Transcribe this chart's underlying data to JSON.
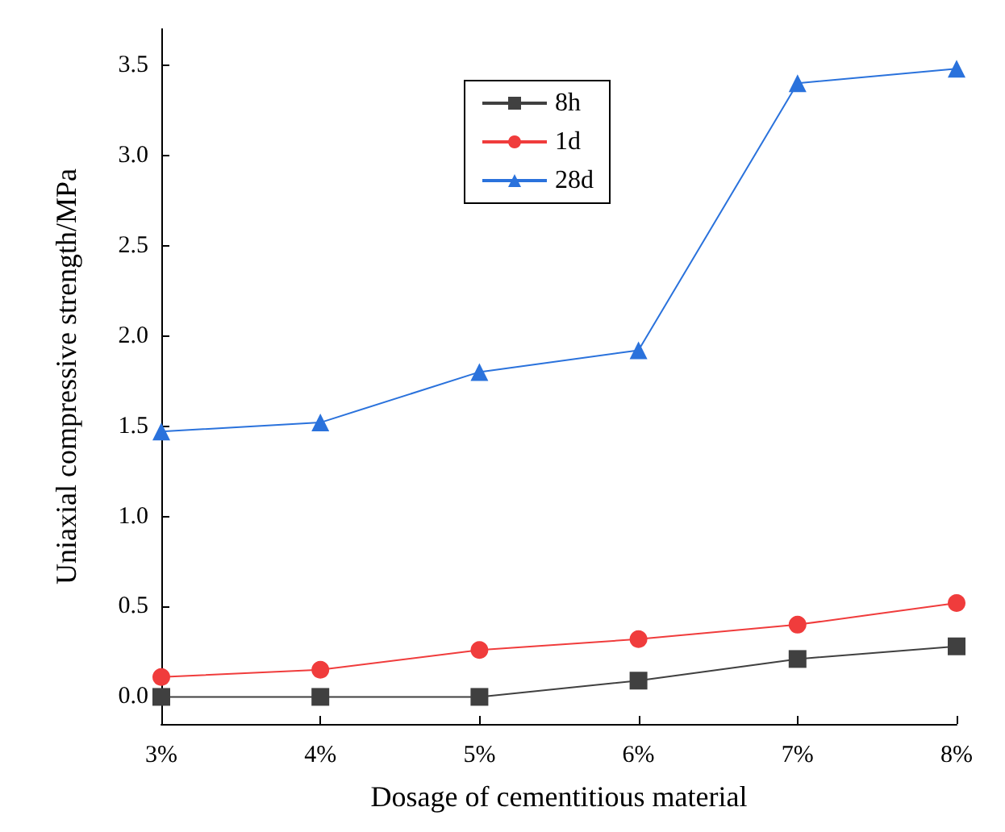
{
  "chart_data": {
    "type": "line",
    "xlabel": "Dosage of cementitious material",
    "ylabel": "Uniaxial compressive strength/MPa",
    "categories": [
      "3%",
      "4%",
      "5%",
      "6%",
      "7%",
      "8%"
    ],
    "series": [
      {
        "name": "8h",
        "color": "#404040",
        "marker": "square",
        "values": [
          0,
          0,
          0,
          0.09,
          0.21,
          0.28
        ]
      },
      {
        "name": "1d",
        "color": "#f03c3c",
        "marker": "circle",
        "values": [
          0.11,
          0.15,
          0.26,
          0.32,
          0.4,
          0.52
        ]
      },
      {
        "name": "28d",
        "color": "#2a72dc",
        "marker": "triangle",
        "values": [
          1.47,
          1.52,
          1.8,
          1.92,
          3.4,
          3.48
        ]
      }
    ],
    "ylim": [
      -0.15,
      3.7
    ],
    "yticks": [
      {
        "value": 0,
        "label": "0.0"
      },
      {
        "value": 0.5,
        "label": "0.5"
      },
      {
        "value": 1,
        "label": "1.0"
      },
      {
        "value": 1.5,
        "label": "1.5"
      },
      {
        "value": 2,
        "label": "2.0"
      },
      {
        "value": 2.5,
        "label": "2.5"
      },
      {
        "value": 3,
        "label": "3.0"
      },
      {
        "value": 3.5,
        "label": "3.5"
      }
    ],
    "grid": false,
    "legend": "top left"
  }
}
